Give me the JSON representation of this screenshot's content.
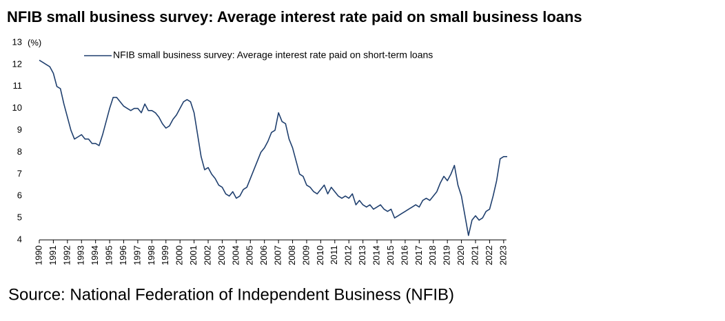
{
  "chart_data": {
    "type": "line",
    "title": "NFIB small business survey: Average interest rate paid on small business loans",
    "y_unit": "(%)",
    "source": "Source: National Federation of Independent Business (NFIB)",
    "x": [
      1990,
      1990.25,
      1990.5,
      1990.75,
      1991,
      1991.25,
      1991.5,
      1991.75,
      1992,
      1992.25,
      1992.5,
      1992.75,
      1993,
      1993.25,
      1993.5,
      1993.75,
      1994,
      1994.25,
      1994.5,
      1994.75,
      1995,
      1995.25,
      1995.5,
      1995.75,
      1996,
      1996.25,
      1996.5,
      1996.75,
      1997,
      1997.25,
      1997.5,
      1997.75,
      1998,
      1998.25,
      1998.5,
      1998.75,
      1999,
      1999.25,
      1999.5,
      1999.75,
      2000,
      2000.25,
      2000.5,
      2000.75,
      2001,
      2001.25,
      2001.5,
      2001.75,
      2002,
      2002.25,
      2002.5,
      2002.75,
      2003,
      2003.25,
      2003.5,
      2003.75,
      2004,
      2004.25,
      2004.5,
      2004.75,
      2005,
      2005.25,
      2005.5,
      2005.75,
      2006,
      2006.25,
      2006.5,
      2006.75,
      2007,
      2007.25,
      2007.5,
      2007.75,
      2008,
      2008.25,
      2008.5,
      2008.75,
      2009,
      2009.25,
      2009.5,
      2009.75,
      2010,
      2010.25,
      2010.5,
      2010.75,
      2011,
      2011.25,
      2011.5,
      2011.75,
      2012,
      2012.25,
      2012.5,
      2012.75,
      2013,
      2013.25,
      2013.5,
      2013.75,
      2014,
      2014.25,
      2014.5,
      2014.75,
      2015,
      2015.25,
      2015.5,
      2015.75,
      2016,
      2016.25,
      2016.5,
      2016.75,
      2017,
      2017.25,
      2017.5,
      2017.75,
      2018,
      2018.25,
      2018.5,
      2018.75,
      2019,
      2019.25,
      2019.5,
      2019.75,
      2020,
      2020.25,
      2020.5,
      2020.75,
      2021,
      2021.25,
      2021.5,
      2021.75,
      2022,
      2022.25,
      2022.5,
      2022.75,
      2023,
      2023.25
    ],
    "series": [
      {
        "name": "NFIB small business survey: Average interest rate paid on short-term loans",
        "color": "#1f3f6e",
        "values": [
          12.2,
          12.1,
          12.0,
          11.9,
          11.6,
          11.0,
          10.9,
          10.2,
          9.6,
          9.0,
          8.6,
          8.7,
          8.8,
          8.6,
          8.6,
          8.4,
          8.4,
          8.3,
          8.8,
          9.4,
          10.0,
          10.5,
          10.5,
          10.3,
          10.1,
          10.0,
          9.9,
          10.0,
          10.0,
          9.8,
          10.2,
          9.9,
          9.9,
          9.8,
          9.6,
          9.3,
          9.1,
          9.2,
          9.5,
          9.7,
          10.0,
          10.3,
          10.4,
          10.3,
          9.8,
          8.8,
          7.8,
          7.2,
          7.3,
          7.0,
          6.8,
          6.5,
          6.4,
          6.1,
          6.0,
          6.2,
          5.9,
          6.0,
          6.3,
          6.4,
          6.8,
          7.2,
          7.6,
          8.0,
          8.2,
          8.5,
          8.9,
          9.0,
          9.8,
          9.4,
          9.3,
          8.6,
          8.2,
          7.6,
          7.0,
          6.9,
          6.5,
          6.4,
          6.2,
          6.1,
          6.3,
          6.5,
          6.1,
          6.4,
          6.2,
          6.0,
          5.9,
          6.0,
          5.9,
          6.1,
          5.6,
          5.8,
          5.6,
          5.5,
          5.6,
          5.4,
          5.5,
          5.6,
          5.4,
          5.3,
          5.4,
          5.0,
          5.1,
          5.2,
          5.3,
          5.4,
          5.5,
          5.6,
          5.5,
          5.8,
          5.9,
          5.8,
          6.0,
          6.2,
          6.6,
          6.9,
          6.7,
          7.0,
          7.4,
          6.5,
          6.0,
          5.1,
          4.2,
          4.9,
          5.1,
          4.9,
          5.0,
          5.3,
          5.4,
          6.0,
          6.7,
          7.7,
          7.8,
          7.8
        ]
      }
    ],
    "xlim": [
      1990,
      2023.4
    ],
    "xticks": [
      1990,
      1991,
      1992,
      1993,
      1994,
      1995,
      1996,
      1997,
      1998,
      1999,
      2000,
      2001,
      2002,
      2003,
      2004,
      2005,
      2006,
      2007,
      2008,
      2009,
      2010,
      2011,
      2012,
      2013,
      2014,
      2015,
      2016,
      2017,
      2018,
      2019,
      2020,
      2021,
      2022,
      2023
    ],
    "ylim": [
      4,
      13
    ],
    "yticks": [
      4,
      5,
      6,
      7,
      8,
      9,
      10,
      11,
      12,
      13
    ],
    "grid": false
  }
}
